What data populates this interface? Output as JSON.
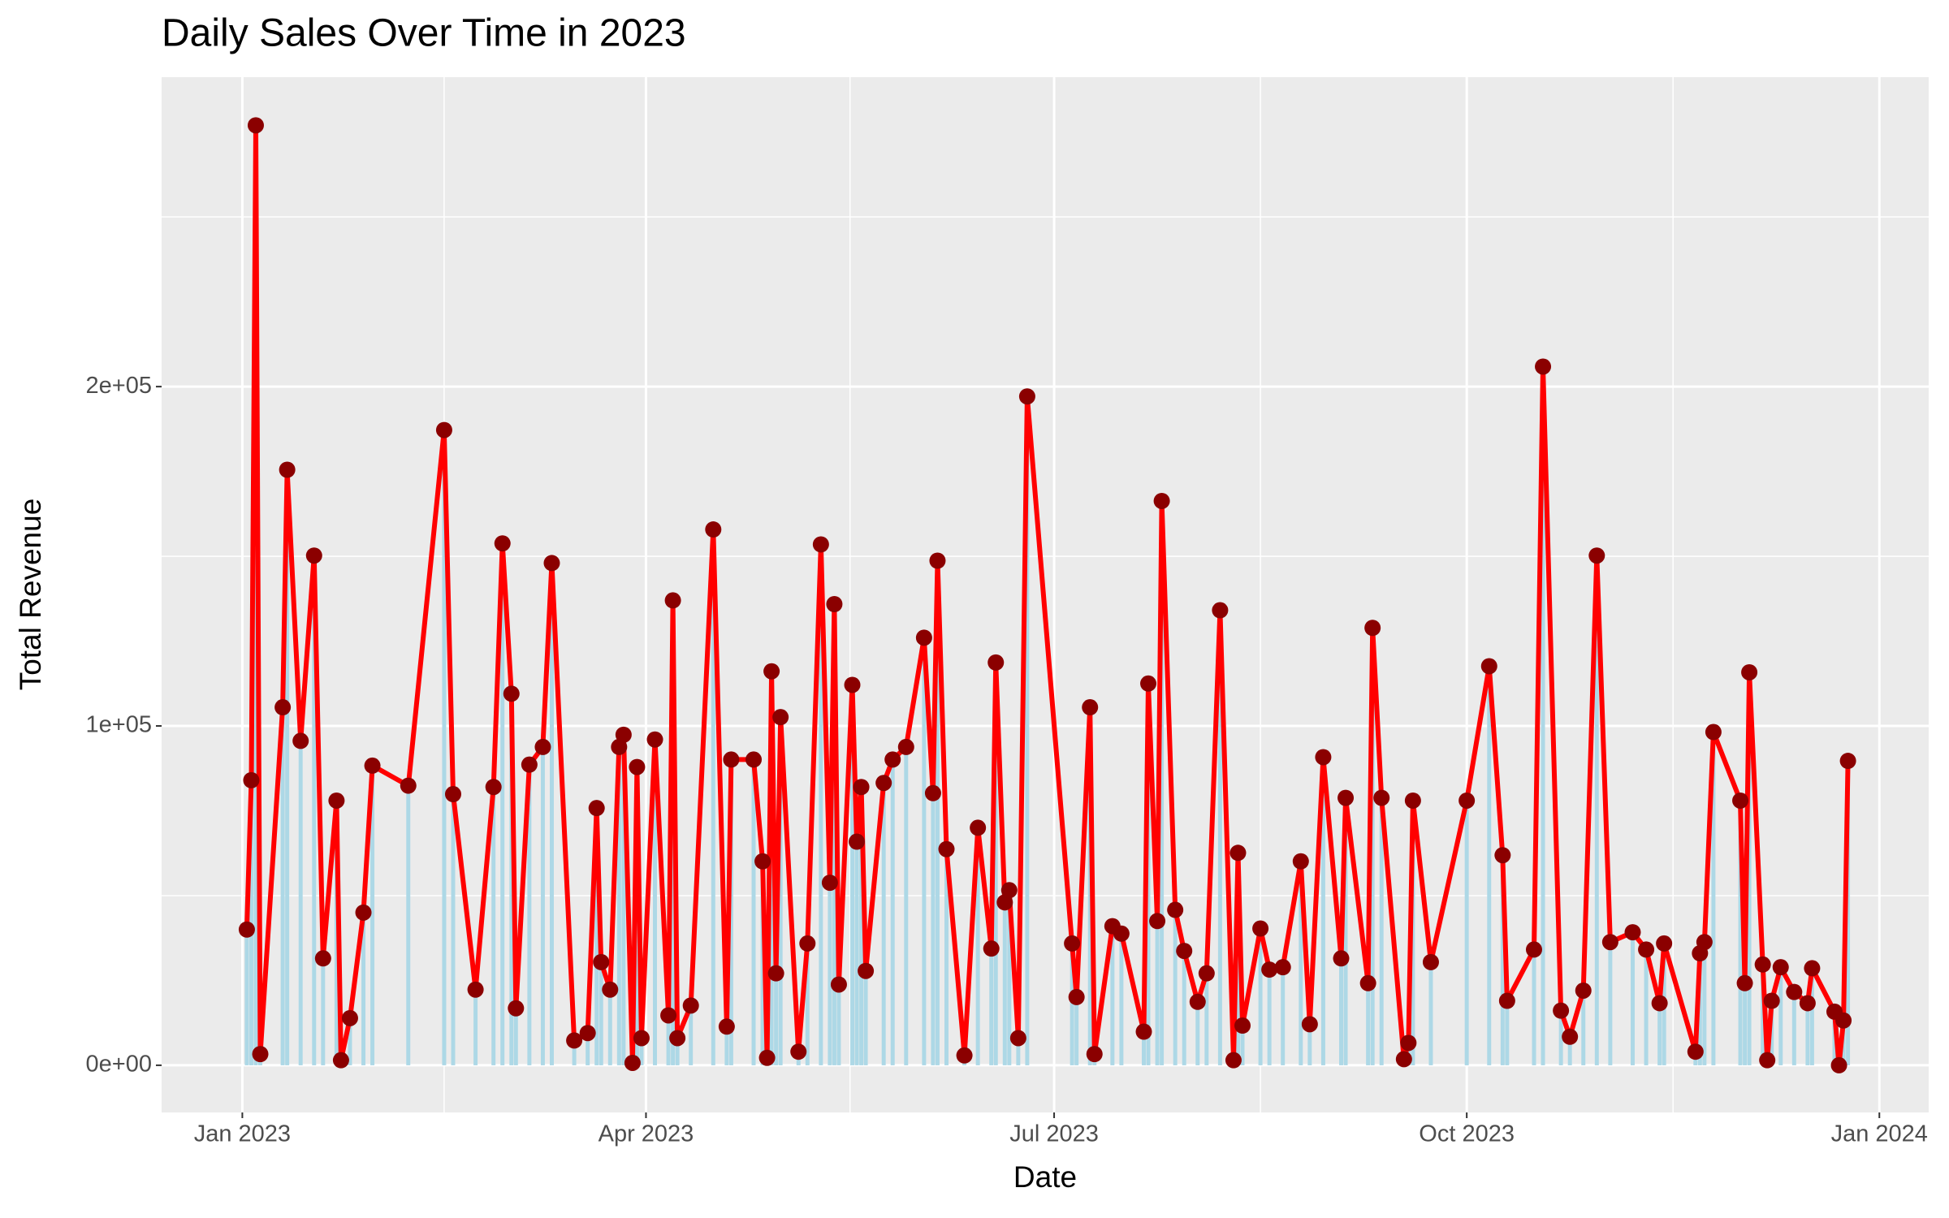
{
  "chart_data": {
    "type": "line",
    "title": "Daily Sales Over Time in 2023",
    "x_label": "Date",
    "y_label": "Total Revenue",
    "line_color": "#ff0000",
    "point_color": "#8b0000",
    "bar_color": "#add8e6",
    "grid": true,
    "xlim": [
      "2022-12-14",
      "2024-01-12"
    ],
    "xticks": [
      {
        "value": "2023-01-01",
        "label": "Jan 2023"
      },
      {
        "value": "2023-04-01",
        "label": "Apr 2023"
      },
      {
        "value": "2023-07-01",
        "label": "Jul 2023"
      },
      {
        "value": "2023-10-01",
        "label": "Oct 2023"
      },
      {
        "value": "2024-01-01",
        "label": "Jan 2024"
      }
    ],
    "ylim": [
      -13900,
      291200
    ],
    "yticks": [
      {
        "value": 0,
        "label": "0e+00"
      },
      {
        "value": 100000,
        "label": "1e+05"
      },
      {
        "value": 200000,
        "label": "2e+05"
      }
    ],
    "x": [
      "2023-01-02",
      "2023-01-03",
      "2023-01-04",
      "2023-01-05",
      "2023-01-10",
      "2023-01-11",
      "2023-01-14",
      "2023-01-17",
      "2023-01-19",
      "2023-01-22",
      "2023-01-23",
      "2023-01-25",
      "2023-01-28",
      "2023-01-30",
      "2023-02-07",
      "2023-02-15",
      "2023-02-17",
      "2023-02-22",
      "2023-02-26",
      "2023-02-28",
      "2023-03-02",
      "2023-03-03",
      "2023-03-06",
      "2023-03-09",
      "2023-03-11",
      "2023-03-16",
      "2023-03-19",
      "2023-03-21",
      "2023-03-22",
      "2023-03-24",
      "2023-03-26",
      "2023-03-27",
      "2023-03-29",
      "2023-03-30",
      "2023-03-31",
      "2023-04-03",
      "2023-04-06",
      "2023-04-07",
      "2023-04-08",
      "2023-04-11",
      "2023-04-16",
      "2023-04-19",
      "2023-04-20",
      "2023-04-25",
      "2023-04-27",
      "2023-04-28",
      "2023-04-29",
      "2023-04-30",
      "2023-05-01",
      "2023-05-05",
      "2023-05-07",
      "2023-05-10",
      "2023-05-12",
      "2023-05-13",
      "2023-05-14",
      "2023-05-17",
      "2023-05-18",
      "2023-05-19",
      "2023-05-20",
      "2023-05-24",
      "2023-05-26",
      "2023-05-29",
      "2023-06-02",
      "2023-06-04",
      "2023-06-05",
      "2023-06-07",
      "2023-06-11",
      "2023-06-14",
      "2023-06-17",
      "2023-06-18",
      "2023-06-20",
      "2023-06-21",
      "2023-06-23",
      "2023-06-25",
      "2023-07-05",
      "2023-07-06",
      "2023-07-09",
      "2023-07-10",
      "2023-07-14",
      "2023-07-16",
      "2023-07-21",
      "2023-07-22",
      "2023-07-24",
      "2023-07-25",
      "2023-07-28",
      "2023-07-30",
      "2023-08-02",
      "2023-08-04",
      "2023-08-07",
      "2023-08-10",
      "2023-08-11",
      "2023-08-12",
      "2023-08-16",
      "2023-08-18",
      "2023-08-21",
      "2023-08-25",
      "2023-08-27",
      "2023-08-30",
      "2023-09-03",
      "2023-09-04",
      "2023-09-09",
      "2023-09-10",
      "2023-09-12",
      "2023-09-17",
      "2023-09-18",
      "2023-09-19",
      "2023-09-23",
      "2023-10-01",
      "2023-10-06",
      "2023-10-09",
      "2023-10-10",
      "2023-10-16",
      "2023-10-18",
      "2023-10-22",
      "2023-10-24",
      "2023-10-27",
      "2023-10-30",
      "2023-11-02",
      "2023-11-07",
      "2023-11-10",
      "2023-11-13",
      "2023-11-14",
      "2023-11-21",
      "2023-11-22",
      "2023-11-23",
      "2023-11-25",
      "2023-12-01",
      "2023-12-02",
      "2023-12-03",
      "2023-12-06",
      "2023-12-07",
      "2023-12-08",
      "2023-12-10",
      "2023-12-13",
      "2023-12-16",
      "2023-12-17",
      "2023-12-22",
      "2023-12-23",
      "2023-12-24",
      "2023-12-25"
    ],
    "values": [
      40000,
      84000,
      277000,
      3300,
      105500,
      175500,
      95600,
      150200,
      31500,
      78000,
      1500,
      13900,
      45000,
      88300,
      82400,
      187200,
      79900,
      22300,
      82000,
      153800,
      109500,
      16800,
      88600,
      93800,
      148000,
      7300,
      9500,
      75800,
      30400,
      22300,
      93800,
      97400,
      700,
      87900,
      8000,
      96000,
      14700,
      137000,
      8000,
      17600,
      157900,
      11400,
      90100,
      90100,
      60100,
      2200,
      116100,
      27100,
      102600,
      4000,
      35900,
      153500,
      53800,
      135900,
      23800,
      112100,
      65900,
      82000,
      27800,
      83200,
      90100,
      93800,
      126000,
      80200,
      148700,
      63700,
      2900,
      70000,
      34400,
      118700,
      48000,
      51600,
      8000,
      197100,
      35900,
      20100,
      105500,
      3300,
      41000,
      38800,
      9900,
      112500,
      42500,
      166300,
      45800,
      33700,
      18700,
      27100,
      134100,
      1500,
      62600,
      11700,
      40300,
      28200,
      28900,
      60100,
      12100,
      90800,
      31500,
      78800,
      24200,
      128900,
      78800,
      1800,
      6600,
      78000,
      30400,
      78000,
      117600,
      61900,
      19000,
      34100,
      205900,
      16100,
      8400,
      22000,
      150200,
      36300,
      39200,
      34100,
      18300,
      35900,
      4000,
      33000,
      36300,
      98200,
      78000,
      24200,
      115800,
      29700,
      1500,
      19000,
      28900,
      21600,
      18300,
      28600,
      15800,
      0,
      13200,
      89700
    ]
  }
}
